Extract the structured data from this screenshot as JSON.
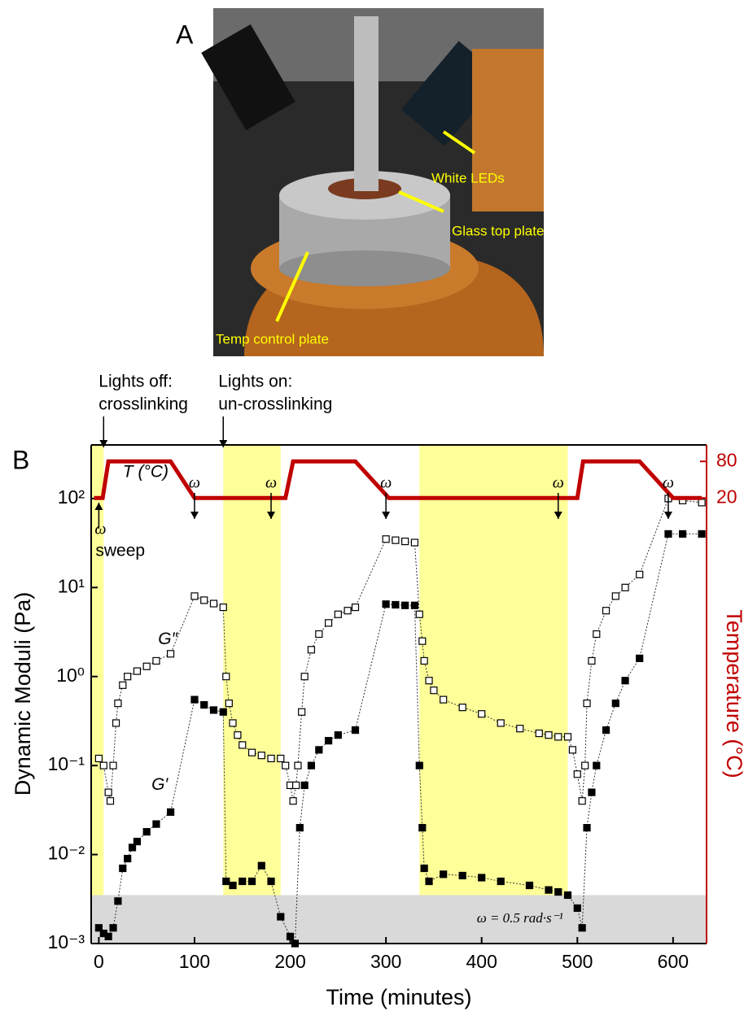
{
  "panel_a": {
    "label": "A",
    "callouts": [
      "White LEDs",
      "Glass top plate",
      "Temp control plate"
    ]
  },
  "chart_data": {
    "type": "scatter",
    "panel_label": "B",
    "xlabel": "Time (minutes)",
    "ylabel": "Dynamic Moduli (Pa)",
    "y2label": "Temperature (°C)",
    "xlim": [
      -8,
      635
    ],
    "xticks": [
      0,
      100,
      200,
      300,
      400,
      500,
      600
    ],
    "ylim": [
      0.001,
      400
    ],
    "log_y": true,
    "yticks": [
      {
        "value": 0.001,
        "label": "10⁻³"
      },
      {
        "value": 0.01,
        "label": "10⁻²"
      },
      {
        "value": 0.1,
        "label": "10⁻¹"
      },
      {
        "value": 1,
        "label": "10⁰"
      },
      {
        "value": 10,
        "label": "10¹"
      },
      {
        "value": 100,
        "label": "10²"
      }
    ],
    "y2lim": [
      -711,
      107
    ],
    "y2ticks": [
      20,
      80
    ],
    "lit_intervals": [
      [
        -8,
        5
      ],
      [
        130,
        190
      ],
      [
        335,
        490
      ]
    ],
    "lit_color": "#ffff99",
    "noise_floor": 0.0035,
    "noise_color": "#d9d9d9",
    "noise_label": "ω = 0.5 rad·s⁻¹",
    "events": [
      {
        "lines": [
          "Lights off:",
          "crosslinking"
        ],
        "x": 5
      },
      {
        "lines": [
          "Lights on:",
          "un-crosslinking"
        ],
        "x": 130
      }
    ],
    "omega_label": "ω",
    "omega_markers": [
      100,
      180,
      300,
      480,
      595
    ],
    "sweep_label": "sweep",
    "sweep_x": 0,
    "series": [
      {
        "name": "G″",
        "color": "#000000",
        "marker": "open",
        "x": [
          0,
          5,
          10,
          12,
          15,
          18,
          20,
          25,
          30,
          40,
          50,
          60,
          75,
          100,
          110,
          120,
          130,
          133,
          136,
          140,
          145,
          150,
          160,
          170,
          180,
          190,
          195,
          200,
          203,
          206,
          208,
          212,
          215,
          222,
          230,
          240,
          250,
          260,
          268,
          300,
          310,
          320,
          330,
          335,
          338,
          340,
          345,
          350,
          360,
          380,
          400,
          420,
          440,
          460,
          470,
          480,
          490,
          495,
          500,
          505,
          508,
          510,
          515,
          520,
          530,
          540,
          550,
          565,
          595,
          610,
          630
        ],
        "values": [
          0.12,
          0.1,
          0.05,
          0.04,
          0.1,
          0.3,
          0.5,
          0.8,
          1,
          1.15,
          1.3,
          1.5,
          1.8,
          8,
          7.2,
          6.6,
          6,
          1,
          0.5,
          0.3,
          0.22,
          0.17,
          0.14,
          0.13,
          0.12,
          0.12,
          0.1,
          0.06,
          0.04,
          0.06,
          0.1,
          0.4,
          1,
          2,
          3,
          4,
          5,
          5.5,
          6,
          35,
          34,
          33,
          32,
          5,
          2.5,
          1.5,
          0.9,
          0.7,
          0.55,
          0.45,
          0.38,
          0.3,
          0.26,
          0.23,
          0.22,
          0.21,
          0.21,
          0.15,
          0.08,
          0.04,
          0.1,
          0.5,
          1.5,
          3,
          5.5,
          8,
          10,
          14,
          100,
          95,
          90
        ]
      },
      {
        "name": "G′",
        "color": "#000000",
        "marker": "filled",
        "x": [
          0,
          5,
          10,
          15,
          20,
          25,
          30,
          35,
          40,
          50,
          60,
          75,
          100,
          110,
          120,
          130,
          133,
          140,
          150,
          160,
          170,
          180,
          190,
          200,
          205,
          210,
          215,
          222,
          230,
          240,
          250,
          268,
          300,
          310,
          320,
          330,
          335,
          338,
          340,
          345,
          360,
          380,
          400,
          420,
          450,
          470,
          480,
          490,
          500,
          505,
          510,
          515,
          520,
          530,
          540,
          550,
          565,
          595,
          610,
          630
        ],
        "values": [
          0.0015,
          0.0013,
          0.0012,
          0.0015,
          0.003,
          0.007,
          0.009,
          0.012,
          0.014,
          0.018,
          0.022,
          0.03,
          0.55,
          0.48,
          0.42,
          0.4,
          0.005,
          0.0045,
          0.005,
          0.005,
          0.0075,
          0.005,
          0.002,
          0.0012,
          0.001,
          0.02,
          0.06,
          0.1,
          0.15,
          0.19,
          0.22,
          0.25,
          6.5,
          6.4,
          6.3,
          6.3,
          0.1,
          0.02,
          0.007,
          0.005,
          0.006,
          0.0058,
          0.0055,
          0.005,
          0.0045,
          0.004,
          0.0038,
          0.0035,
          0.0025,
          0.0015,
          0.02,
          0.05,
          0.1,
          0.25,
          0.5,
          0.9,
          1.6,
          40,
          40,
          40
        ]
      },
      {
        "name": "T (°C)",
        "color": "#c00000",
        "axis": "y2",
        "x": [
          -5,
          4,
          10,
          75,
          100,
          185,
          195,
          203,
          268,
          303,
          490,
          500,
          506,
          565,
          600,
          630
        ],
        "values": [
          20,
          20,
          80,
          80,
          20,
          20,
          20,
          80,
          80,
          20,
          20,
          20,
          80,
          80,
          20,
          20
        ]
      }
    ]
  }
}
